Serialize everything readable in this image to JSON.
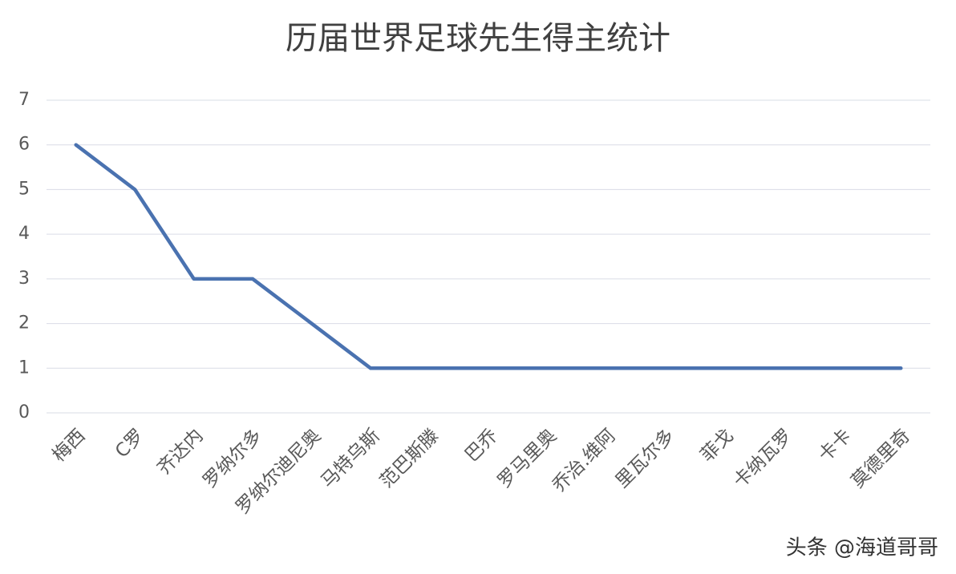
{
  "chart_data": {
    "type": "line",
    "title": "历届世界足球先生得主统计",
    "categories": [
      "梅西",
      "C罗",
      "齐达内",
      "罗纳尔多",
      "罗纳尔迪尼奥",
      "马特乌斯",
      "范巴斯滕",
      "巴乔",
      "罗马里奥",
      "乔治.维阿",
      "里瓦尔多",
      "菲戈",
      "卡纳瓦罗",
      "卡卡",
      "莫德里奇"
    ],
    "values": [
      6,
      5,
      3,
      3,
      2,
      1,
      1,
      1,
      1,
      1,
      1,
      1,
      1,
      1,
      1
    ],
    "color": "#4a72b0",
    "ylim": [
      0,
      7
    ],
    "yticks": [
      0,
      1,
      2,
      3,
      4,
      5,
      6,
      7
    ],
    "grid": true
  },
  "watermark": "头条 @海道哥哥"
}
